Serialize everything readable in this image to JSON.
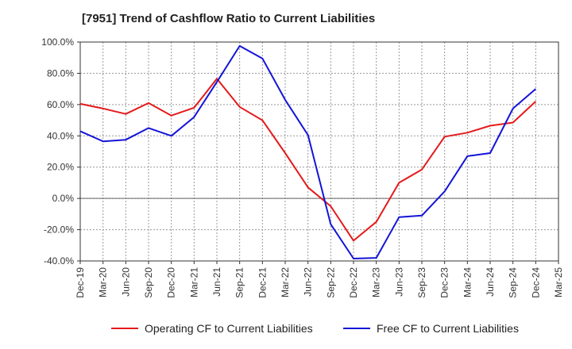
{
  "chart_data": {
    "type": "line",
    "title": "[7951]  Trend of Cashflow Ratio to Current Liabilities",
    "xlabel": "",
    "ylabel": "",
    "ylim": [
      -40,
      100
    ],
    "yticks": [
      "100.0%",
      "80.0%",
      "60.0%",
      "40.0%",
      "20.0%",
      "0.0%",
      "-20.0%",
      "-40.0%"
    ],
    "ytick_values": [
      100,
      80,
      60,
      40,
      20,
      0,
      -20,
      -40
    ],
    "x": [
      "Dec-19",
      "Mar-20",
      "Jun-20",
      "Sep-20",
      "Dec-20",
      "Mar-21",
      "Jun-21",
      "Sep-21",
      "Dec-21",
      "Mar-22",
      "Jun-22",
      "Sep-22",
      "Dec-22",
      "Mar-23",
      "Jun-23",
      "Sep-23",
      "Dec-23",
      "Mar-24",
      "Jun-24",
      "Sep-24",
      "Dec-24",
      "Mar-25"
    ],
    "grid": true,
    "legend_position": "bottom",
    "series": [
      {
        "name": "Operating CF to Current Liabilities",
        "color": "#e41a1c",
        "values": [
          60.5,
          57.5,
          54,
          61,
          53,
          58,
          76.5,
          58.5,
          50,
          29,
          7,
          -5,
          -27,
          -15,
          10,
          18.5,
          39.5,
          42,
          46.5,
          48.5,
          62,
          null
        ]
      },
      {
        "name": "Free CF to Current Liabilities",
        "color": "#1414d9",
        "values": [
          43,
          36.5,
          37.5,
          45,
          40,
          52,
          74.5,
          97.5,
          89.5,
          63,
          40.5,
          -16.5,
          -38.5,
          -38,
          -12,
          -11,
          4.5,
          27,
          29,
          57.5,
          70,
          null
        ]
      }
    ]
  }
}
